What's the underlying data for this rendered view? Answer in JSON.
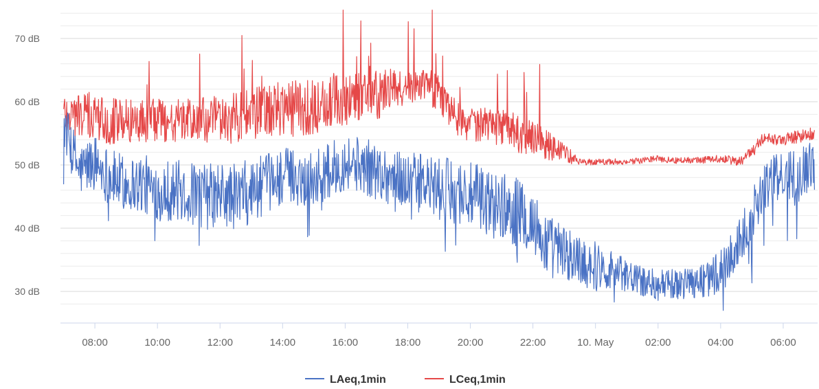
{
  "chart_data": {
    "type": "line",
    "title": "",
    "xlabel": "",
    "ylabel": "",
    "x_axis": {
      "unit": "hours since 07:00 on 9 May",
      "range": [
        -0.1,
        24.1
      ],
      "ticks": [
        {
          "x": 1,
          "label": "08:00"
        },
        {
          "x": 3,
          "label": "10:00"
        },
        {
          "x": 5,
          "label": "12:00"
        },
        {
          "x": 7,
          "label": "14:00"
        },
        {
          "x": 9,
          "label": "16:00"
        },
        {
          "x": 11,
          "label": "18:00"
        },
        {
          "x": 13,
          "label": "20:00"
        },
        {
          "x": 15,
          "label": "22:00"
        },
        {
          "x": 17,
          "label": "10. May"
        },
        {
          "x": 19,
          "label": "02:00"
        },
        {
          "x": 21,
          "label": "04:00"
        },
        {
          "x": 23,
          "label": "06:00"
        }
      ]
    },
    "y_axis": {
      "unit": "dB",
      "range": [
        25,
        75
      ],
      "ticks": [
        {
          "y": 30,
          "label": "30 dB"
        },
        {
          "y": 40,
          "label": "40 dB"
        },
        {
          "y": 50,
          "label": "50 dB"
        },
        {
          "y": 60,
          "label": "60 dB"
        },
        {
          "y": 70,
          "label": "70 dB"
        }
      ],
      "minor_grid_step": 2
    },
    "grid": true,
    "legend": "bottom-center",
    "series": [
      {
        "name": "LAeq,1min",
        "color": "#4a72c4",
        "points": [
          [
            0.0,
            56.5
          ],
          [
            0.3,
            52
          ],
          [
            0.5,
            49
          ],
          [
            0.8,
            50
          ],
          [
            1.0,
            50.5
          ],
          [
            1.3,
            49
          ],
          [
            1.5,
            48
          ],
          [
            2.0,
            47
          ],
          [
            2.5,
            47
          ],
          [
            3.0,
            46
          ],
          [
            3.5,
            46
          ],
          [
            4.0,
            45.5
          ],
          [
            4.5,
            45
          ],
          [
            5.0,
            45
          ],
          [
            5.5,
            45
          ],
          [
            6.0,
            46
          ],
          [
            6.5,
            47
          ],
          [
            7.0,
            48.5
          ],
          [
            7.5,
            48
          ],
          [
            8.0,
            48
          ],
          [
            8.5,
            49
          ],
          [
            9.0,
            50.5
          ],
          [
            9.5,
            50
          ],
          [
            10.0,
            49
          ],
          [
            10.5,
            48
          ],
          [
            11.0,
            47.5
          ],
          [
            11.5,
            47
          ],
          [
            12.0,
            46
          ],
          [
            12.5,
            46
          ],
          [
            13.0,
            45
          ],
          [
            13.5,
            44
          ],
          [
            14.0,
            43.5
          ],
          [
            14.5,
            42.5
          ],
          [
            15.0,
            41
          ],
          [
            15.3,
            38
          ],
          [
            15.6,
            37
          ],
          [
            16.0,
            36
          ],
          [
            16.5,
            35
          ],
          [
            17.0,
            34
          ],
          [
            17.5,
            33.5
          ],
          [
            18.0,
            32.5
          ],
          [
            18.5,
            31.5
          ],
          [
            19.0,
            31
          ],
          [
            19.5,
            31
          ],
          [
            20.0,
            31.5
          ],
          [
            20.5,
            32
          ],
          [
            21.0,
            33
          ],
          [
            21.3,
            35
          ],
          [
            21.6,
            38
          ],
          [
            22.0,
            42
          ],
          [
            22.3,
            46
          ],
          [
            22.6,
            47.5
          ],
          [
            23.0,
            48
          ],
          [
            23.5,
            49
          ],
          [
            24.0,
            50
          ]
        ],
        "noise": [
          [
            0,
            8
          ],
          [
            1,
            9
          ],
          [
            2,
            9
          ],
          [
            3,
            10
          ],
          [
            4,
            10
          ],
          [
            5,
            11
          ],
          [
            6,
            10
          ],
          [
            7,
            9
          ],
          [
            8,
            9
          ],
          [
            9,
            9
          ],
          [
            10,
            9
          ],
          [
            11,
            9
          ],
          [
            12,
            10
          ],
          [
            13,
            11
          ],
          [
            14,
            11
          ],
          [
            15,
            11
          ],
          [
            16,
            9
          ],
          [
            17,
            8
          ],
          [
            18,
            5
          ],
          [
            19,
            5
          ],
          [
            20,
            5
          ],
          [
            21,
            7
          ],
          [
            22,
            8
          ],
          [
            23,
            8
          ],
          [
            24,
            8
          ]
        ]
      },
      {
        "name": "LCeq,1min",
        "color": "#e54848",
        "points": [
          [
            0.0,
            58.5
          ],
          [
            0.3,
            58
          ],
          [
            0.5,
            58
          ],
          [
            1.0,
            57.5
          ],
          [
            1.5,
            57
          ],
          [
            2.0,
            57
          ],
          [
            2.5,
            57
          ],
          [
            3.0,
            57
          ],
          [
            3.5,
            57
          ],
          [
            4.0,
            57
          ],
          [
            4.5,
            57
          ],
          [
            5.0,
            57
          ],
          [
            5.5,
            57.5
          ],
          [
            6.0,
            58
          ],
          [
            6.5,
            58.5
          ],
          [
            7.0,
            59
          ],
          [
            7.5,
            59
          ],
          [
            8.0,
            59
          ],
          [
            8.5,
            60
          ],
          [
            9.0,
            60.5
          ],
          [
            9.5,
            61
          ],
          [
            10.0,
            61
          ],
          [
            10.5,
            62
          ],
          [
            11.0,
            62
          ],
          [
            11.3,
            63
          ],
          [
            11.6,
            63
          ],
          [
            12.0,
            61
          ],
          [
            12.5,
            58
          ],
          [
            13.0,
            56.5
          ],
          [
            13.5,
            56
          ],
          [
            14.0,
            56
          ],
          [
            14.5,
            55
          ],
          [
            15.0,
            54
          ],
          [
            15.5,
            53
          ],
          [
            16.0,
            52
          ],
          [
            16.3,
            51
          ],
          [
            16.6,
            50.5
          ],
          [
            17.0,
            50.5
          ],
          [
            17.5,
            50.5
          ],
          [
            18.0,
            50.5
          ],
          [
            18.5,
            50.7
          ],
          [
            19.0,
            51
          ],
          [
            19.5,
            50.7
          ],
          [
            20.0,
            50.7
          ],
          [
            20.5,
            50.8
          ],
          [
            21.0,
            51
          ],
          [
            21.3,
            50.8
          ],
          [
            21.6,
            50.5
          ],
          [
            22.0,
            52
          ],
          [
            22.3,
            54
          ],
          [
            22.6,
            54
          ],
          [
            23.0,
            54
          ],
          [
            23.5,
            54.5
          ],
          [
            24.0,
            55
          ]
        ],
        "noise": [
          [
            0,
            7
          ],
          [
            1,
            8
          ],
          [
            2,
            7
          ],
          [
            3,
            7
          ],
          [
            4,
            7
          ],
          [
            5,
            8
          ],
          [
            6,
            8
          ],
          [
            7,
            9
          ],
          [
            8,
            9
          ],
          [
            9,
            9
          ],
          [
            10,
            8
          ],
          [
            11,
            5
          ],
          [
            12,
            6
          ],
          [
            13,
            6
          ],
          [
            14,
            6
          ],
          [
            15,
            6
          ],
          [
            16,
            3
          ],
          [
            16.5,
            1.2
          ],
          [
            17,
            1
          ],
          [
            20,
            1
          ],
          [
            21,
            1.2
          ],
          [
            21.6,
            1.5
          ],
          [
            22,
            2
          ],
          [
            23,
            2
          ],
          [
            24,
            2
          ]
        ]
      }
    ]
  }
}
